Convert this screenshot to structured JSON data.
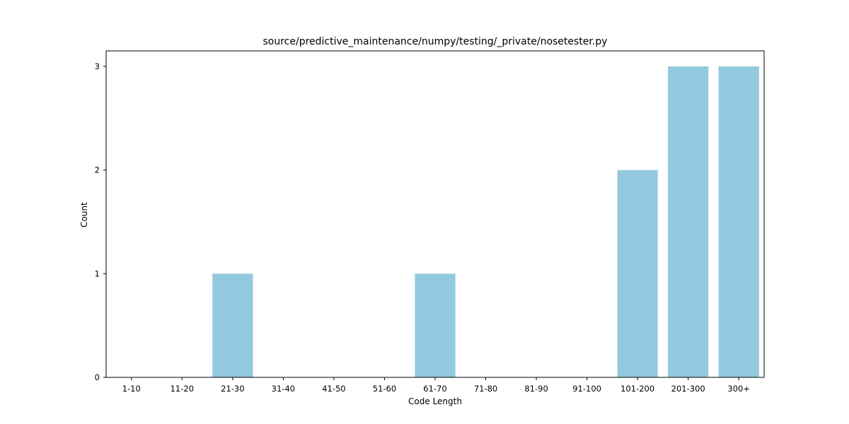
{
  "chart_data": {
    "type": "bar",
    "title": "source/predictive_maintenance/numpy/testing/_private/nosetester.py",
    "xlabel": "Code Length",
    "ylabel": "Count",
    "categories": [
      "1-10",
      "11-20",
      "21-30",
      "31-40",
      "41-50",
      "51-60",
      "61-70",
      "71-80",
      "81-90",
      "91-100",
      "101-200",
      "201-300",
      "300+"
    ],
    "values": [
      0,
      0,
      1,
      0,
      0,
      0,
      1,
      0,
      0,
      0,
      2,
      3,
      3
    ],
    "ylim": [
      0,
      3.15
    ],
    "yticks": [
      0,
      1,
      2,
      3
    ],
    "grid": false,
    "bar_color": "#92c9de"
  }
}
